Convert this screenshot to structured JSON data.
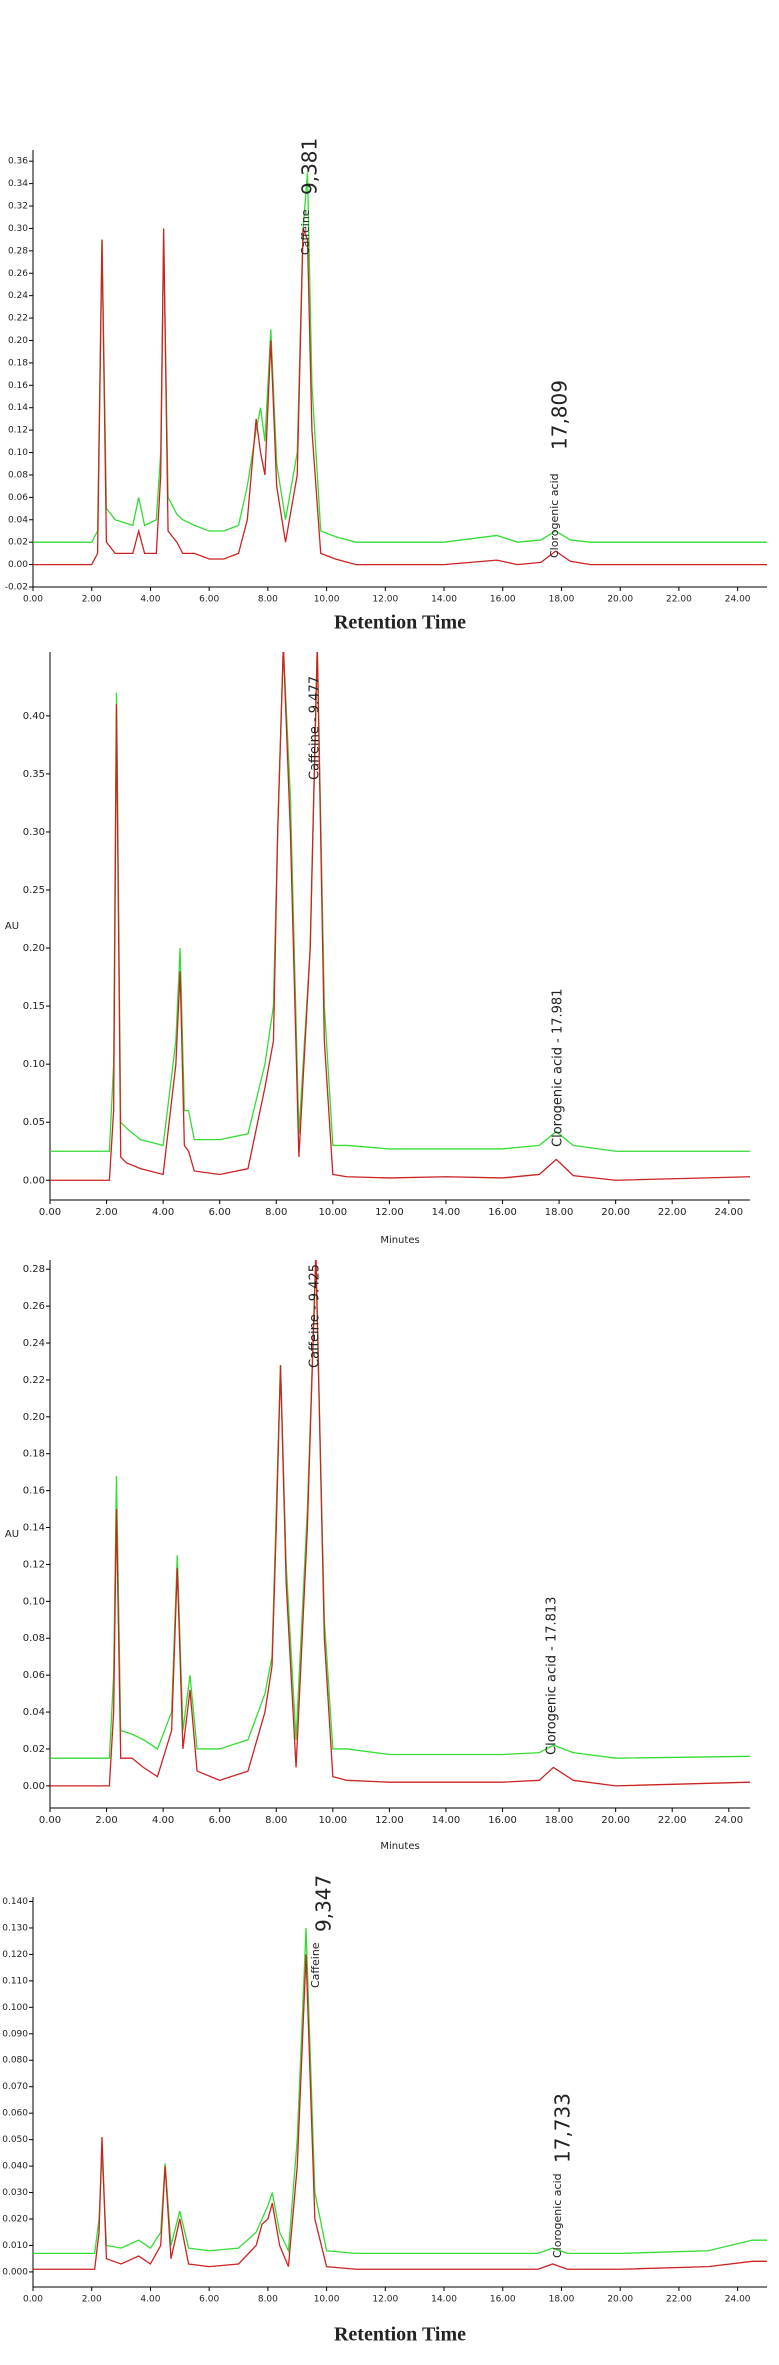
{
  "chart_data": [
    {
      "type": "line",
      "x_label": "Retention Time",
      "x": [
        0,
        2.0,
        2.2,
        2.35,
        2.5,
        2.8,
        3.4,
        3.6,
        3.8,
        4.2,
        4.35,
        4.45,
        4.6,
        4.9,
        5.1,
        5.5,
        6.0,
        6.5,
        7.0,
        7.3,
        7.6,
        7.75,
        7.9,
        8.1,
        8.3,
        8.6,
        9.0,
        9.2,
        9.35,
        9.5,
        9.8,
        10.3,
        11,
        12,
        14,
        15.8,
        16.5,
        17.3,
        17.8,
        18.3,
        19,
        22,
        25
      ],
      "series": [
        {
          "name": "green",
          "color": "#33dd33",
          "values": [
            0.02,
            0.02,
            0.03,
            0.29,
            0.05,
            0.04,
            0.035,
            0.06,
            0.035,
            0.04,
            0.1,
            0.29,
            0.06,
            0.045,
            0.04,
            0.035,
            0.03,
            0.03,
            0.035,
            0.07,
            0.12,
            0.14,
            0.11,
            0.21,
            0.09,
            0.04,
            0.1,
            0.3,
            0.35,
            0.16,
            0.03,
            0.025,
            0.02,
            0.02,
            0.02,
            0.026,
            0.02,
            0.022,
            0.03,
            0.022,
            0.02,
            0.02,
            0.02
          ]
        },
        {
          "name": "red",
          "color": "#cc2222",
          "values": [
            0.0,
            0.0,
            0.01,
            0.29,
            0.02,
            0.01,
            0.01,
            0.03,
            0.01,
            0.01,
            0.08,
            0.3,
            0.03,
            0.02,
            0.01,
            0.01,
            0.005,
            0.005,
            0.01,
            0.04,
            0.13,
            0.1,
            0.08,
            0.2,
            0.07,
            0.02,
            0.08,
            0.3,
            0.29,
            0.12,
            0.01,
            0.005,
            0.0,
            0.0,
            0.0,
            0.004,
            0.0,
            0.002,
            0.012,
            0.003,
            0.0,
            0.0,
            0.0
          ]
        }
      ],
      "xlim": [
        0,
        25
      ],
      "ylim": [
        -0.02,
        0.37
      ],
      "xticks": [
        {
          "value": 0,
          "label": "0.00"
        },
        {
          "value": 2,
          "label": "2.00"
        },
        {
          "value": 4,
          "label": "4.00"
        },
        {
          "value": 6,
          "label": "6.00"
        },
        {
          "value": 8,
          "label": "8.00"
        },
        {
          "value": 10,
          "label": "10.00"
        },
        {
          "value": 12,
          "label": "12.00"
        },
        {
          "value": 14,
          "label": "14.00"
        },
        {
          "value": 16,
          "label": "16.00"
        },
        {
          "value": 18,
          "label": "18.00"
        },
        {
          "value": 20,
          "label": "20.00"
        },
        {
          "value": 22,
          "label": "22.00"
        },
        {
          "value": 24,
          "label": "24.00"
        }
      ],
      "yticks": [
        {
          "value": -0.02,
          "label": "-0.02"
        },
        {
          "value": 0,
          "label": "0.00"
        },
        {
          "value": 0.02,
          "label": "0.02"
        },
        {
          "value": 0.04,
          "label": "0.04"
        },
        {
          "value": 0.06,
          "label": "0.06"
        },
        {
          "value": 0.08,
          "label": "0.08"
        },
        {
          "value": 0.1,
          "label": "0.10"
        },
        {
          "value": 0.12,
          "label": "0.12"
        },
        {
          "value": 0.14,
          "label": "0.14"
        },
        {
          "value": 0.16,
          "label": "0.16"
        },
        {
          "value": 0.18,
          "label": "0.18"
        },
        {
          "value": 0.2,
          "label": "0.20"
        },
        {
          "value": 0.22,
          "label": "0.22"
        },
        {
          "value": 0.24,
          "label": "0.24"
        },
        {
          "value": 0.26,
          "label": "0.26"
        },
        {
          "value": 0.28,
          "label": "0.28"
        },
        {
          "value": 0.3,
          "label": "0.30"
        },
        {
          "value": 0.32,
          "label": "0.32"
        },
        {
          "value": 0.34,
          "label": "0.34"
        },
        {
          "value": 0.36,
          "label": "0.36"
        }
      ],
      "annotations": [
        "Caffeine",
        "9,381",
        "Clorogenic acid",
        "17,809"
      ]
    },
    {
      "type": "line",
      "x_label": "Minutes",
      "y_label": "AU",
      "x": [
        0,
        2.1,
        2.25,
        2.35,
        2.5,
        2.7,
        3.2,
        4.0,
        4.45,
        4.6,
        4.75,
        4.9,
        5.1,
        6.0,
        7.0,
        7.6,
        7.9,
        8.05,
        8.25,
        8.5,
        8.8,
        9.2,
        9.45,
        9.7,
        10.0,
        10.5,
        12,
        14,
        16,
        17.3,
        17.9,
        18.5,
        20,
        24.75
      ],
      "series": [
        {
          "name": "green",
          "color": "#33dd33",
          "values": [
            0.025,
            0.025,
            0.1,
            0.42,
            0.05,
            0.045,
            0.035,
            0.03,
            0.12,
            0.2,
            0.06,
            0.06,
            0.035,
            0.035,
            0.04,
            0.1,
            0.15,
            0.3,
            0.46,
            0.33,
            0.04,
            0.2,
            0.46,
            0.15,
            0.03,
            0.03,
            0.027,
            0.027,
            0.027,
            0.03,
            0.042,
            0.03,
            0.025,
            0.025
          ]
        },
        {
          "name": "red",
          "color": "#cc2222",
          "values": [
            0,
            0,
            0.06,
            0.41,
            0.02,
            0.015,
            0.01,
            0.005,
            0.1,
            0.18,
            0.03,
            0.025,
            0.008,
            0.005,
            0.01,
            0.08,
            0.12,
            0.3,
            0.46,
            0.3,
            0.02,
            0.2,
            0.46,
            0.12,
            0.005,
            0.003,
            0.002,
            0.003,
            0.002,
            0.005,
            0.018,
            0.004,
            0,
            0.003
          ]
        }
      ],
      "xlim": [
        0,
        24.75
      ],
      "ylim": [
        -0.017,
        0.455
      ],
      "xticks": [
        {
          "value": 0,
          "label": "0.00"
        },
        {
          "value": 2,
          "label": "2.00"
        },
        {
          "value": 4,
          "label": "4.00"
        },
        {
          "value": 6,
          "label": "6.00"
        },
        {
          "value": 8,
          "label": "8.00"
        },
        {
          "value": 10,
          "label": "10.00"
        },
        {
          "value": 12,
          "label": "12.00"
        },
        {
          "value": 14,
          "label": "14.00"
        },
        {
          "value": 16,
          "label": "16.00"
        },
        {
          "value": 18,
          "label": "18.00"
        },
        {
          "value": 20,
          "label": "20.00"
        },
        {
          "value": 22,
          "label": "22.00"
        },
        {
          "value": 24,
          "label": "24.00"
        }
      ],
      "yticks": [
        {
          "value": 0,
          "label": "0.00"
        },
        {
          "value": 0.05,
          "label": "0.05"
        },
        {
          "value": 0.1,
          "label": "0.10"
        },
        {
          "value": 0.15,
          "label": "0.15"
        },
        {
          "value": 0.2,
          "label": "0.20"
        },
        {
          "value": 0.25,
          "label": "0.25"
        },
        {
          "value": 0.3,
          "label": "0.30"
        },
        {
          "value": 0.35,
          "label": "0.35"
        },
        {
          "value": 0.4,
          "label": "0.40"
        }
      ],
      "annotations": [
        "Caffeine - 9.477",
        "Clorogenic acid - 17.981"
      ]
    },
    {
      "type": "line",
      "x_label": "Minutes",
      "y_label": "AU",
      "x": [
        0,
        2.1,
        2.25,
        2.35,
        2.5,
        2.9,
        3.3,
        3.8,
        4.3,
        4.5,
        4.7,
        4.95,
        5.2,
        6.0,
        7.0,
        7.6,
        7.85,
        8.0,
        8.15,
        8.35,
        8.7,
        9.1,
        9.4,
        9.7,
        10.0,
        10.5,
        12,
        14,
        16,
        17.3,
        17.8,
        18.5,
        20,
        24.75
      ],
      "series": [
        {
          "name": "green",
          "color": "#33dd33",
          "values": [
            0.015,
            0.015,
            0.06,
            0.168,
            0.03,
            0.028,
            0.025,
            0.02,
            0.04,
            0.125,
            0.03,
            0.06,
            0.02,
            0.02,
            0.025,
            0.05,
            0.07,
            0.15,
            0.228,
            0.12,
            0.025,
            0.15,
            0.285,
            0.09,
            0.02,
            0.02,
            0.017,
            0.017,
            0.017,
            0.018,
            0.022,
            0.018,
            0.015,
            0.016
          ]
        },
        {
          "name": "red",
          "color": "#cc2222",
          "values": [
            0,
            0,
            0.04,
            0.15,
            0.015,
            0.015,
            0.01,
            0.005,
            0.03,
            0.118,
            0.02,
            0.052,
            0.008,
            0.003,
            0.008,
            0.04,
            0.065,
            0.14,
            0.228,
            0.11,
            0.01,
            0.14,
            0.29,
            0.08,
            0.005,
            0.003,
            0.002,
            0.002,
            0.002,
            0.003,
            0.01,
            0.003,
            0,
            0.002
          ]
        }
      ],
      "xlim": [
        0,
        24.75
      ],
      "ylim": [
        -0.012,
        0.285
      ],
      "xticks": [
        {
          "value": 0,
          "label": "0.00"
        },
        {
          "value": 2,
          "label": "2.00"
        },
        {
          "value": 4,
          "label": "4.00"
        },
        {
          "value": 6,
          "label": "6.00"
        },
        {
          "value": 8,
          "label": "8.00"
        },
        {
          "value": 10,
          "label": "10.00"
        },
        {
          "value": 12,
          "label": "12.00"
        },
        {
          "value": 14,
          "label": "14.00"
        },
        {
          "value": 16,
          "label": "16.00"
        },
        {
          "value": 18,
          "label": "18.00"
        },
        {
          "value": 20,
          "label": "20.00"
        },
        {
          "value": 22,
          "label": "22.00"
        },
        {
          "value": 24,
          "label": "24.00"
        }
      ],
      "yticks": [
        {
          "value": 0,
          "label": "0.00"
        },
        {
          "value": 0.02,
          "label": "0.02"
        },
        {
          "value": 0.04,
          "label": "0.04"
        },
        {
          "value": 0.06,
          "label": "0.06"
        },
        {
          "value": 0.08,
          "label": "0.08"
        },
        {
          "value": 0.1,
          "label": "0.10"
        },
        {
          "value": 0.12,
          "label": "0.12"
        },
        {
          "value": 0.14,
          "label": "0.14"
        },
        {
          "value": 0.16,
          "label": "0.16"
        },
        {
          "value": 0.18,
          "label": "0.18"
        },
        {
          "value": 0.2,
          "label": "0.20"
        },
        {
          "value": 0.22,
          "label": "0.22"
        },
        {
          "value": 0.24,
          "label": "0.24"
        },
        {
          "value": 0.26,
          "label": "0.26"
        },
        {
          "value": 0.28,
          "label": "0.28"
        }
      ],
      "annotations": [
        "Caffeine - 9.425",
        "Clorogenic acid - 17.813"
      ]
    },
    {
      "type": "line",
      "x_label": "Retention Time",
      "x": [
        0,
        2.1,
        2.25,
        2.35,
        2.5,
        3.0,
        3.6,
        4.0,
        4.35,
        4.5,
        4.7,
        5.0,
        5.3,
        6.0,
        7.0,
        7.6,
        7.8,
        8.0,
        8.15,
        8.4,
        8.7,
        9.0,
        9.3,
        9.6,
        10.0,
        11,
        14,
        17.2,
        17.7,
        18.2,
        20,
        23,
        24.5,
        25
      ],
      "series": [
        {
          "name": "green",
          "color": "#33dd33",
          "values": [
            0.007,
            0.007,
            0.02,
            0.045,
            0.01,
            0.009,
            0.012,
            0.009,
            0.015,
            0.041,
            0.01,
            0.023,
            0.009,
            0.008,
            0.009,
            0.015,
            0.02,
            0.025,
            0.03,
            0.015,
            0.008,
            0.05,
            0.13,
            0.03,
            0.008,
            0.007,
            0.007,
            0.007,
            0.009,
            0.007,
            0.007,
            0.008,
            0.012,
            0.012
          ]
        },
        {
          "name": "red",
          "color": "#cc2222",
          "values": [
            0.001,
            0.001,
            0.015,
            0.051,
            0.005,
            0.003,
            0.006,
            0.003,
            0.01,
            0.04,
            0.005,
            0.02,
            0.003,
            0.002,
            0.003,
            0.01,
            0.018,
            0.02,
            0.026,
            0.01,
            0.002,
            0.04,
            0.12,
            0.02,
            0.002,
            0.001,
            0.001,
            0.001,
            0.003,
            0.001,
            0.001,
            0.002,
            0.004,
            0.004
          ]
        }
      ],
      "xlim": [
        0,
        25
      ],
      "ylim": [
        -0.0057,
        0.1417
      ],
      "xticks": [
        {
          "value": 0,
          "label": "0.00"
        },
        {
          "value": 2,
          "label": "2.00"
        },
        {
          "value": 4,
          "label": "4.00"
        },
        {
          "value": 6,
          "label": "6.00"
        },
        {
          "value": 8,
          "label": "8.00"
        },
        {
          "value": 10,
          "label": "10.00"
        },
        {
          "value": 12,
          "label": "12.00"
        },
        {
          "value": 14,
          "label": "14.00"
        },
        {
          "value": 16,
          "label": "16.00"
        },
        {
          "value": 18,
          "label": "18.00"
        },
        {
          "value": 20,
          "label": "20.00"
        },
        {
          "value": 22,
          "label": "22.00"
        },
        {
          "value": 24,
          "label": "24.00"
        }
      ],
      "yticks": [
        {
          "value": 0,
          "label": "0.000"
        },
        {
          "value": 0.01,
          "label": "0.010"
        },
        {
          "value": 0.02,
          "label": "0.020"
        },
        {
          "value": 0.03,
          "label": "0.030"
        },
        {
          "value": 0.04,
          "label": "0.040"
        },
        {
          "value": 0.05,
          "label": "0.050"
        },
        {
          "value": 0.06,
          "label": "0.060"
        },
        {
          "value": 0.07,
          "label": "0.070"
        },
        {
          "value": 0.08,
          "label": "0.080"
        },
        {
          "value": 0.09,
          "label": "0.090"
        },
        {
          "value": 0.1,
          "label": "0.100"
        },
        {
          "value": 0.11,
          "label": "0.110"
        },
        {
          "value": 0.12,
          "label": "0.120"
        },
        {
          "value": 0.13,
          "label": "0.130"
        },
        {
          "value": 0.14,
          "label": "0.140"
        }
      ],
      "annotations": [
        "Caffeine",
        "9,347",
        "Clorogenic acid",
        "17,733"
      ]
    }
  ]
}
